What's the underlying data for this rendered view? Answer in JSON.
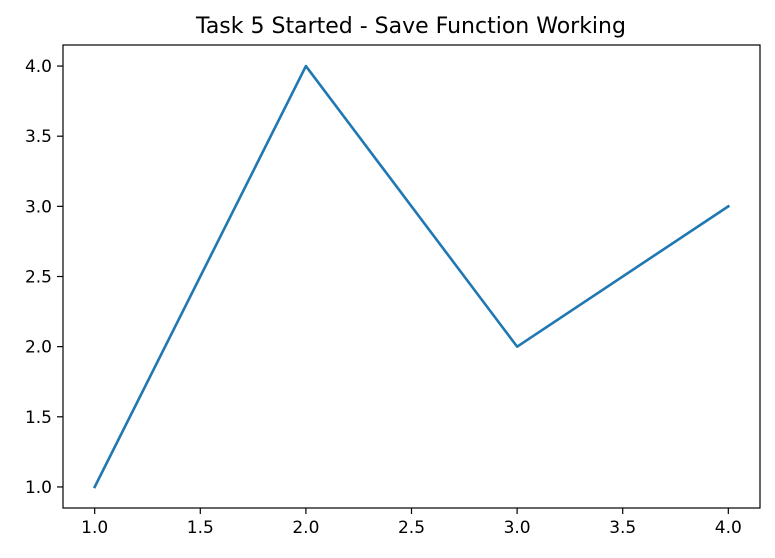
{
  "chart_data": {
    "type": "line",
    "title": "Task 5 Started - Save Function Working",
    "xlabel": "",
    "ylabel": "",
    "xlim": [
      0.85,
      4.15
    ],
    "ylim": [
      0.85,
      4.15
    ],
    "x_ticks": [
      1.0,
      1.5,
      2.0,
      2.5,
      3.0,
      3.5,
      4.0
    ],
    "x_tick_labels": [
      "1.0",
      "1.5",
      "2.0",
      "2.5",
      "3.0",
      "3.5",
      "4.0"
    ],
    "y_ticks": [
      1.0,
      1.5,
      2.0,
      2.5,
      3.0,
      3.5,
      4.0
    ],
    "y_tick_labels": [
      "1.0",
      "1.5",
      "2.0",
      "2.5",
      "3.0",
      "3.5",
      "4.0"
    ],
    "grid": false,
    "series": [
      {
        "x": [
          1,
          2,
          3,
          4
        ],
        "y": [
          1,
          4,
          2,
          3
        ],
        "color": "#1f77b4"
      }
    ]
  }
}
